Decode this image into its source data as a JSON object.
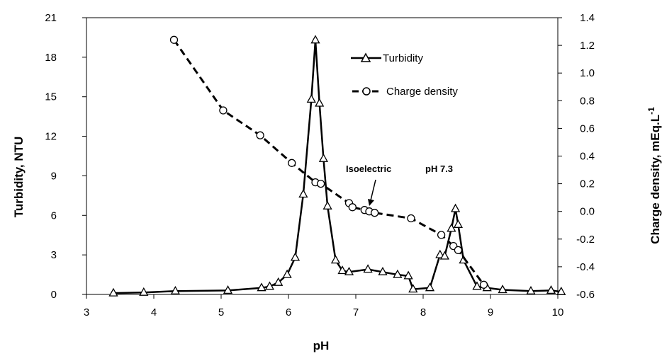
{
  "chart_data": {
    "type": "line",
    "title": "",
    "xlabel": "pH",
    "ylabel_left": "Turbidity, NTU",
    "ylabel_right": "Charge density, mEq.L-1",
    "xlim": [
      3,
      10
    ],
    "ylim_left": [
      0,
      21
    ],
    "ylim_right": [
      -0.6,
      1.4
    ],
    "x_ticks": [
      "3",
      "4",
      "5",
      "6",
      "7",
      "8",
      "9",
      "10"
    ],
    "y_left_ticks": [
      "0",
      "3",
      "6",
      "9",
      "12",
      "15",
      "18",
      "21"
    ],
    "y_right_ticks": [
      "-0.6",
      "-0.4",
      "-0.2",
      "0.0",
      "0.2",
      "0.4",
      "0.6",
      "0.8",
      "1.0",
      "1.2",
      "1.4"
    ],
    "grid": false,
    "legend_position": "top-right",
    "series": [
      {
        "name": "Turbidity",
        "axis": "left",
        "line_style": "solid",
        "marker": "triangle",
        "x": [
          3.4,
          3.85,
          4.32,
          5.1,
          5.6,
          5.72,
          5.85,
          5.98,
          6.1,
          6.22,
          6.34,
          6.4,
          6.46,
          6.52,
          6.58,
          6.7,
          6.8,
          6.9,
          7.18,
          7.4,
          7.62,
          7.78,
          7.85,
          8.1,
          8.25,
          8.32,
          8.42,
          8.48,
          8.52,
          8.6,
          8.8,
          8.95,
          9.18,
          9.6,
          9.9,
          10.05
        ],
        "values": [
          0.1,
          0.15,
          0.25,
          0.3,
          0.5,
          0.6,
          0.9,
          1.5,
          2.8,
          7.6,
          14.8,
          19.3,
          14.5,
          10.3,
          6.7,
          2.6,
          1.8,
          1.7,
          1.9,
          1.7,
          1.5,
          1.4,
          0.4,
          0.5,
          3.0,
          2.9,
          5.0,
          6.5,
          5.3,
          2.6,
          0.6,
          0.5,
          0.35,
          0.25,
          0.3,
          0.2
        ]
      },
      {
        "name": "Charge density",
        "axis": "right",
        "line_style": "dashed",
        "marker": "open-circle",
        "x": [
          4.3,
          5.03,
          5.58,
          6.05,
          6.4,
          6.48,
          6.9,
          6.95,
          7.13,
          7.2,
          7.28,
          7.82,
          8.27,
          8.45,
          8.52,
          8.9
        ],
        "values": [
          1.24,
          0.73,
          0.55,
          0.35,
          0.21,
          0.2,
          0.06,
          0.03,
          0.01,
          0.0,
          -0.01,
          -0.05,
          -0.17,
          -0.25,
          -0.28,
          -0.53
        ]
      }
    ],
    "annotations": [
      {
        "text": "Isoelectric",
        "x": 7.2,
        "y_right": 0.0
      },
      {
        "text": "pH 7.3"
      }
    ]
  }
}
